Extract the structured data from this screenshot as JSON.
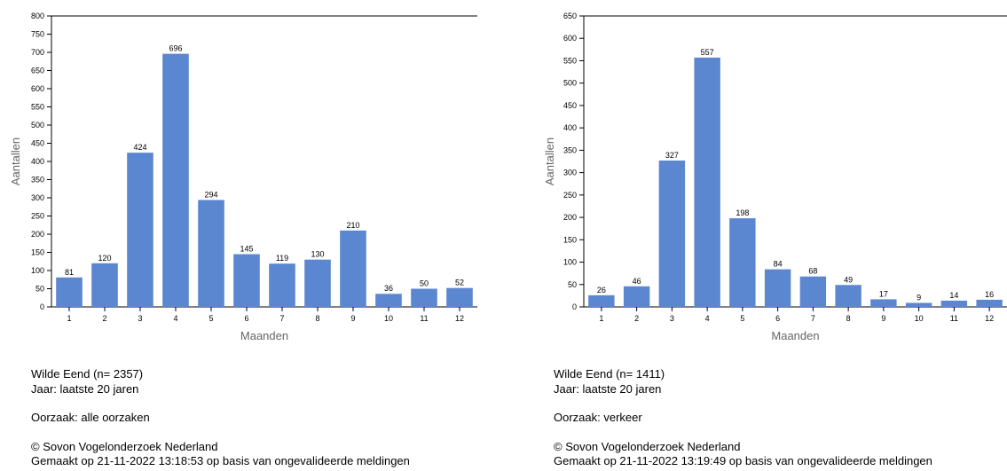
{
  "chart_data": [
    {
      "type": "bar",
      "xlabel": "Maanden",
      "ylabel": "Aantallen",
      "categories": [
        "1",
        "2",
        "3",
        "4",
        "5",
        "6",
        "7",
        "8",
        "9",
        "10",
        "11",
        "12"
      ],
      "values": [
        81,
        120,
        424,
        696,
        294,
        145,
        119,
        130,
        210,
        36,
        50,
        52
      ],
      "ylim": [
        0,
        800
      ],
      "yticks": [
        0,
        50,
        100,
        150,
        200,
        250,
        300,
        350,
        400,
        450,
        500,
        550,
        600,
        650,
        700,
        750,
        800
      ],
      "bar_color": "#5b87d0",
      "data_labels": true
    },
    {
      "type": "bar",
      "xlabel": "Maanden",
      "ylabel": "Aantallen",
      "categories": [
        "1",
        "2",
        "3",
        "4",
        "5",
        "6",
        "7",
        "8",
        "9",
        "10",
        "11",
        "12"
      ],
      "values": [
        26,
        46,
        327,
        557,
        198,
        84,
        68,
        49,
        17,
        9,
        14,
        16
      ],
      "ylim": [
        0,
        650
      ],
      "yticks": [
        0,
        50,
        100,
        150,
        200,
        250,
        300,
        350,
        400,
        450,
        500,
        550,
        600,
        650
      ],
      "bar_color": "#5b87d0",
      "data_labels": true
    }
  ],
  "captions": [
    {
      "species": "Wilde Eend  (n= 2357)",
      "year": "Jaar: laatste 20 jaren",
      "cause": "Oorzaak: alle oorzaken",
      "copyright": "© Sovon Vogelonderzoek Nederland",
      "made": "Gemaakt op 21-11-2022 13:18:53 op basis van ongevalideerde meldingen"
    },
    {
      "species": "Wilde Eend  (n= 1411)",
      "year": "Jaar: laatste 20 jaren",
      "cause": "Oorzaak: verkeer",
      "copyright": "© Sovon Vogelonderzoek Nederland",
      "made": "Gemaakt op 21-11-2022 13:19:49 op basis van ongevalideerde meldingen"
    }
  ]
}
